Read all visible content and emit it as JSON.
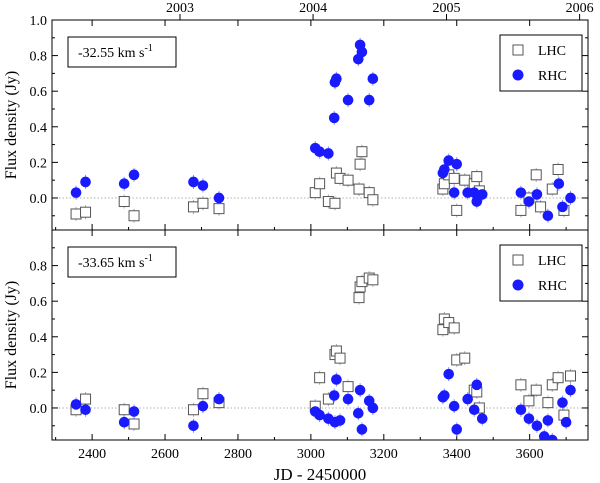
{
  "chart_data": {
    "type": "scatter",
    "xlabel": "JD - 2450000",
    "xlim": [
      2290,
      3760
    ],
    "x_ticks": [
      2400,
      2600,
      2800,
      3000,
      3200,
      3400,
      3600
    ],
    "year_axis": [
      {
        "label": "2003",
        "jd": 2641
      },
      {
        "label": "2004",
        "jd": 3006
      },
      {
        "label": "2005",
        "jd": 3372
      },
      {
        "label": "2006",
        "jd": 3737
      }
    ],
    "panels": [
      {
        "annotation": "-32.55 km s",
        "annotation_sup": "-1",
        "ylabel": "Flux density (Jy)",
        "ylim": [
          -0.18,
          1.0
        ],
        "y_ticks": [
          0.0,
          0.2,
          0.4,
          0.6,
          0.8,
          1.0
        ],
        "y_tick_labels": [
          "0.0",
          "0.2",
          "0.4",
          "0.6",
          "0.8",
          "1.0"
        ],
        "legend": [
          "LHC",
          "RHC"
        ],
        "series": [
          {
            "name": "LHC",
            "marker": "open-square",
            "color": "#555555",
            "points": [
              [
                2356,
                -0.09
              ],
              [
                2382,
                -0.08
              ],
              [
                2488,
                -0.02
              ],
              [
                2515,
                -0.1
              ],
              [
                2678,
                -0.05
              ],
              [
                2704,
                -0.03
              ],
              [
                2748,
                -0.06
              ],
              [
                3012,
                0.03
              ],
              [
                3024,
                0.08
              ],
              [
                3048,
                -0.02
              ],
              [
                3066,
                -0.03
              ],
              [
                3070,
                0.14
              ],
              [
                3080,
                0.11
              ],
              [
                3102,
                0.1
              ],
              [
                3132,
                0.05
              ],
              [
                3135,
                0.19
              ],
              [
                3140,
                0.26
              ],
              [
                3160,
                0.03
              ],
              [
                3170,
                -0.01
              ],
              [
                3362,
                0.05
              ],
              [
                3366,
                0.08
              ],
              [
                3378,
                0.13
              ],
              [
                3393,
                0.11
              ],
              [
                3400,
                -0.07
              ],
              [
                3422,
                0.1
              ],
              [
                3448,
                0.08
              ],
              [
                3455,
                0.12
              ],
              [
                3462,
                0.04
              ],
              [
                3576,
                -0.07
              ],
              [
                3598,
                0.0
              ],
              [
                3618,
                0.13
              ],
              [
                3630,
                -0.05
              ],
              [
                3662,
                0.05
              ],
              [
                3678,
                0.16
              ],
              [
                3694,
                -0.07
              ]
            ]
          },
          {
            "name": "RHC",
            "marker": "filled-circle",
            "color": "#1a1aff",
            "points": [
              [
                2356,
                0.03
              ],
              [
                2382,
                0.09
              ],
              [
                2488,
                0.08
              ],
              [
                2515,
                0.13
              ],
              [
                2678,
                0.09
              ],
              [
                2704,
                0.07
              ],
              [
                2748,
                0.0
              ],
              [
                3012,
                0.28
              ],
              [
                3024,
                0.26
              ],
              [
                3048,
                0.25
              ],
              [
                3064,
                0.45
              ],
              [
                3066,
                0.65
              ],
              [
                3070,
                0.67
              ],
              [
                3102,
                0.55
              ],
              [
                3130,
                0.78
              ],
              [
                3135,
                0.86
              ],
              [
                3140,
                0.82
              ],
              [
                3160,
                0.55
              ],
              [
                3170,
                0.67
              ],
              [
                3362,
                0.14
              ],
              [
                3366,
                0.16
              ],
              [
                3378,
                0.21
              ],
              [
                3393,
                0.03
              ],
              [
                3400,
                0.19
              ],
              [
                3430,
                0.03
              ],
              [
                3448,
                0.03
              ],
              [
                3455,
                -0.02
              ],
              [
                3470,
                0.02
              ],
              [
                3576,
                0.03
              ],
              [
                3598,
                -0.02
              ],
              [
                3620,
                0.02
              ],
              [
                3650,
                -0.1
              ],
              [
                3680,
                0.08
              ],
              [
                3690,
                -0.05
              ],
              [
                3712,
                0.0
              ]
            ]
          }
        ]
      },
      {
        "annotation": "-33.65 km s",
        "annotation_sup": "-1",
        "ylabel": "Flux density (Jy)",
        "ylim": [
          -0.18,
          1.0
        ],
        "y_ticks": [
          0.0,
          0.2,
          0.4,
          0.6,
          0.8
        ],
        "y_tick_labels": [
          "0.0",
          "0.2",
          "0.4",
          "0.6",
          "0.8"
        ],
        "legend": [
          "LHC",
          "RHC"
        ],
        "series": [
          {
            "name": "LHC",
            "marker": "open-square",
            "color": "#555555",
            "points": [
              [
                2356,
                -0.01
              ],
              [
                2382,
                0.05
              ],
              [
                2488,
                -0.01
              ],
              [
                2515,
                -0.09
              ],
              [
                2678,
                -0.01
              ],
              [
                2704,
                0.08
              ],
              [
                2748,
                0.03
              ],
              [
                3012,
                0.01
              ],
              [
                3024,
                0.17
              ],
              [
                3048,
                0.05
              ],
              [
                3066,
                0.3
              ],
              [
                3070,
                0.32
              ],
              [
                3080,
                0.28
              ],
              [
                3102,
                0.12
              ],
              [
                3132,
                0.62
              ],
              [
                3135,
                0.68
              ],
              [
                3140,
                0.71
              ],
              [
                3160,
                0.73
              ],
              [
                3170,
                0.72
              ],
              [
                3362,
                0.44
              ],
              [
                3366,
                0.5
              ],
              [
                3378,
                0.48
              ],
              [
                3393,
                0.45
              ],
              [
                3400,
                0.27
              ],
              [
                3422,
                0.28
              ],
              [
                3448,
                0.1
              ],
              [
                3455,
                0.09
              ],
              [
                3462,
                0.0
              ],
              [
                3576,
                0.13
              ],
              [
                3598,
                0.04
              ],
              [
                3618,
                0.1
              ],
              [
                3650,
                0.03
              ],
              [
                3662,
                0.13
              ],
              [
                3678,
                0.17
              ],
              [
                3694,
                -0.04
              ],
              [
                3712,
                0.18
              ]
            ]
          },
          {
            "name": "RHC",
            "marker": "filled-circle",
            "color": "#1a1aff",
            "points": [
              [
                2356,
                0.02
              ],
              [
                2382,
                -0.01
              ],
              [
                2488,
                -0.08
              ],
              [
                2515,
                -0.02
              ],
              [
                2678,
                -0.1
              ],
              [
                2704,
                0.01
              ],
              [
                2748,
                0.05
              ],
              [
                3012,
                -0.02
              ],
              [
                3024,
                -0.04
              ],
              [
                3048,
                -0.06
              ],
              [
                3064,
                0.07
              ],
              [
                3066,
                -0.08
              ],
              [
                3070,
                0.16
              ],
              [
                3080,
                -0.07
              ],
              [
                3102,
                0.05
              ],
              [
                3130,
                -0.03
              ],
              [
                3135,
                0.1
              ],
              [
                3140,
                -0.12
              ],
              [
                3160,
                0.04
              ],
              [
                3170,
                0.0
              ],
              [
                3362,
                0.06
              ],
              [
                3366,
                0.07
              ],
              [
                3378,
                0.19
              ],
              [
                3393,
                0.01
              ],
              [
                3400,
                -0.12
              ],
              [
                3430,
                0.05
              ],
              [
                3448,
                -0.01
              ],
              [
                3455,
                0.13
              ],
              [
                3470,
                -0.06
              ],
              [
                3576,
                -0.01
              ],
              [
                3598,
                -0.06
              ],
              [
                3620,
                -0.1
              ],
              [
                3640,
                -0.16
              ],
              [
                3650,
                -0.07
              ],
              [
                3662,
                -0.18
              ],
              [
                3690,
                0.03
              ],
              [
                3700,
                -0.08
              ],
              [
                3712,
                0.1
              ]
            ]
          }
        ]
      }
    ]
  }
}
